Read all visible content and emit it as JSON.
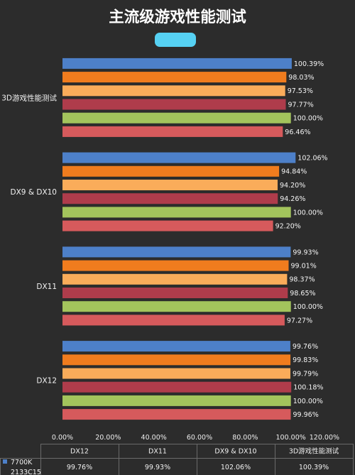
{
  "colors": {
    "background": "#2c2c2c",
    "badge": "#56d1f3",
    "table_lines": "#6a6a6a"
  },
  "chart_data": {
    "type": "bar",
    "orientation": "horizontal",
    "title": "主流级游戏性能测试",
    "xlabel": "",
    "ylabel": "",
    "categories": [
      "DX12",
      "DX11",
      "DX9 & DX10",
      "3D游戏性能测试"
    ],
    "series": [
      {
        "name": "7700K 2133C15",
        "color": "#4d80c9",
        "values": [
          99.76,
          99.93,
          102.06,
          100.39
        ]
      },
      {
        "color": "#f07c1e",
        "values": [
          99.83,
          99.01,
          94.84,
          98.03
        ]
      },
      {
        "color": "#faac5a",
        "values": [
          99.79,
          98.37,
          94.2,
          97.53
        ]
      },
      {
        "color": "#af3c4b",
        "values": [
          100.18,
          98.65,
          94.26,
          97.77
        ]
      },
      {
        "color": "#a3c45c",
        "values": [
          100.0,
          100.0,
          100.0,
          100.0
        ]
      },
      {
        "color": "#d65a5c",
        "values": [
          99.96,
          97.27,
          92.2,
          96.46
        ]
      }
    ],
    "xlim": [
      0,
      120
    ],
    "xticks": [
      0,
      20,
      40,
      60,
      80,
      100,
      120
    ],
    "grid": false,
    "data_labels": true,
    "data_table": true,
    "legend": "data-table"
  }
}
